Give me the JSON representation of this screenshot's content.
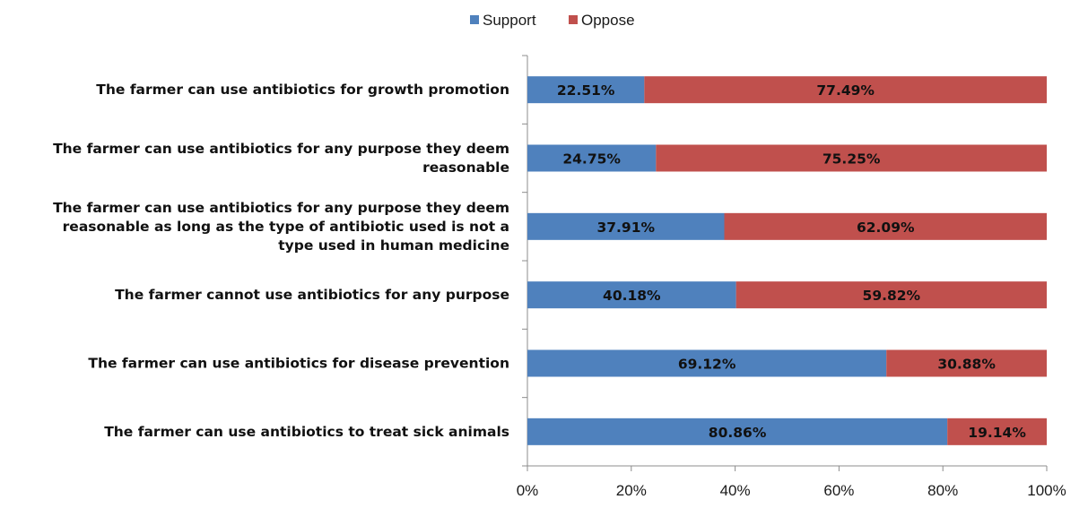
{
  "chart_data": {
    "type": "bar",
    "orientation": "horizontal",
    "stacked": true,
    "categories": [
      [
        "The farmer can use antibiotics for growth promotion"
      ],
      [
        "The farmer can use antibiotics for any purpose they deem",
        "reasonable"
      ],
      [
        "The farmer can use antibiotics for any purpose they deem",
        "reasonable as long as the type of antibiotic used is not a",
        "type used in human medicine"
      ],
      [
        "The farmer cannot use antibiotics for any purpose"
      ],
      [
        "The farmer can use antibiotics for disease prevention"
      ],
      [
        "The farmer can use antibiotics to treat sick animals"
      ]
    ],
    "series": [
      {
        "name": "Support",
        "color": "#4f81bd",
        "values": [
          22.51,
          24.75,
          37.91,
          40.18,
          69.12,
          80.86
        ],
        "labels": [
          "22.51%",
          "24.75%",
          "37.91%",
          "40.18%",
          "69.12%",
          "80.86%"
        ]
      },
      {
        "name": "Oppose",
        "color": "#c0504d",
        "values": [
          77.49,
          75.25,
          62.09,
          59.82,
          30.88,
          19.14
        ],
        "labels": [
          "77.49%",
          "75.25%",
          "62.09%",
          "59.82%",
          "30.88%",
          "19.14%"
        ]
      }
    ],
    "xlim": [
      0,
      100
    ],
    "xticks": [
      "0%",
      "20%",
      "40%",
      "60%",
      "80%",
      "100%"
    ],
    "title": "",
    "xlabel": "",
    "ylabel": "",
    "legend": "top-center",
    "grid": false
  }
}
